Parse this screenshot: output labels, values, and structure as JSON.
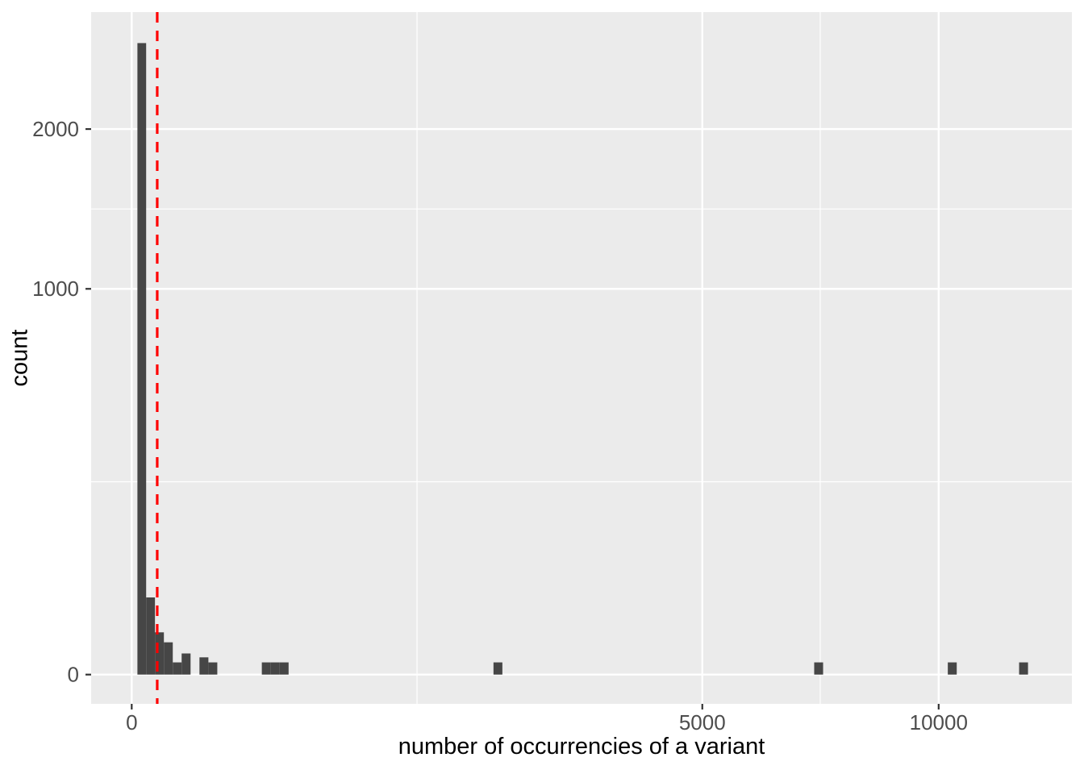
{
  "page": {
    "background": "#ffffff",
    "description": "ggplot2 histogram with square-root transformed x and y scales and a red dashed vertical threshold line"
  },
  "chart_data": {
    "type": "bar",
    "subtype": "histogram",
    "title": "",
    "xlabel": "number of occurrencies of a variant",
    "ylabel": "count",
    "x_scale": "sqrt",
    "y_scale": "sqrt",
    "x_axis_range": [
      0,
      13500
    ],
    "y_axis_range": [
      0,
      2950
    ],
    "grid": "on",
    "legend": "none",
    "x_ticks": [
      {
        "value": 0,
        "label": "0"
      },
      {
        "value": 5000,
        "label": "5000"
      },
      {
        "value": 10000,
        "label": "10000"
      }
    ],
    "y_ticks": [
      {
        "value": 0,
        "label": "0"
      },
      {
        "value": 1000,
        "label": "1000"
      },
      {
        "value": 2000,
        "label": "2000"
      }
    ],
    "x_minor_breaks": [
      1250,
      7280
    ],
    "y_minor_breaks": [
      250,
      1457
    ],
    "bins": [
      {
        "x0": 0.5,
        "x1": 3.2,
        "count": 2680
      },
      {
        "x0": 3.2,
        "x1": 8.3,
        "count": 40
      },
      {
        "x0": 8.3,
        "x1": 15.9,
        "count": 12
      },
      {
        "x0": 15.9,
        "x1": 25.9,
        "count": 7
      },
      {
        "x0": 25.9,
        "x1": 38.3,
        "count": 1
      },
      {
        "x0": 38.3,
        "x1": 53.2,
        "count": 3
      },
      {
        "x0": 70.5,
        "x1": 90.3,
        "count": 2
      },
      {
        "x0": 90.3,
        "x1": 112.5,
        "count": 1
      },
      {
        "x0": 260,
        "x1": 297,
        "count": 1
      },
      {
        "x0": 297,
        "x1": 336,
        "count": 1
      },
      {
        "x0": 336,
        "x1": 378,
        "count": 1
      },
      {
        "x0": 2010,
        "x1": 2110,
        "count": 1
      },
      {
        "x0": 7153,
        "x1": 7341,
        "count": 1
      },
      {
        "x0": 10228,
        "x1": 10453,
        "count": 1
      },
      {
        "x0": 12093,
        "x1": 12337,
        "count": 1
      }
    ],
    "reference_line": {
      "orientation": "vertical",
      "x": 10,
      "color": "#ff0000",
      "linetype": "dashed"
    },
    "colors": {
      "bar": "#464646",
      "panel_background": "#ebebeb",
      "grid": "#ffffff",
      "axis_text": "#4d4d4d",
      "tick": "#333333",
      "title_text": "#000000"
    }
  }
}
